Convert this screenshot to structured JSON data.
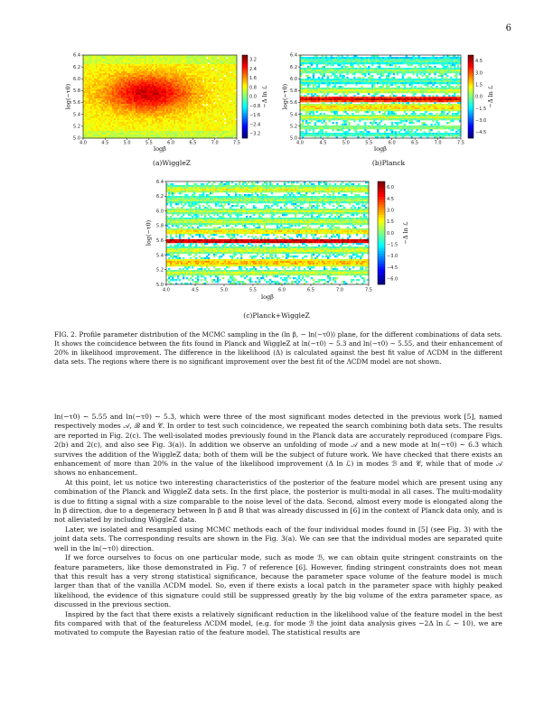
{
  "page_number": "6",
  "figures": {
    "wigglez": {
      "caption": "(a)WiggleZ",
      "xlabel": "logβ",
      "ylabel": "log(−τ0)",
      "colorbar_label": "−Δ ln ℒ",
      "xticks": [
        "4.0",
        "4.5",
        "5.0",
        "5.5",
        "6.0",
        "6.5",
        "7.0",
        "7.5"
      ],
      "yticks": [
        "5.0",
        "5.2",
        "5.4",
        "5.6",
        "5.8",
        "6.0",
        "6.2",
        "6.4"
      ],
      "cbar_ticks": [
        "3.2",
        "2.4",
        "1.6",
        "0.8",
        "0.0",
        "−0.8",
        "−1.6",
        "−2.4",
        "−3.2"
      ]
    },
    "planck": {
      "caption": "(b)Planck",
      "xlabel": "logβ",
      "ylabel": "log(−τ0)",
      "colorbar_label": "−Δ ln ℒ",
      "xticks": [
        "4.0",
        "4.5",
        "5.0",
        "5.5",
        "6.0",
        "6.5",
        "7.0",
        "7.5"
      ],
      "yticks": [
        "5.0",
        "5.2",
        "5.4",
        "5.6",
        "5.8",
        "6.0",
        "6.2",
        "6.4"
      ],
      "cbar_ticks": [
        "4.5",
        "3.0",
        "1.5",
        "0.0",
        "−1.5",
        "−3.0",
        "−4.5"
      ]
    },
    "combined": {
      "caption": "(c)Planck+WiggleZ",
      "xlabel": "logβ",
      "ylabel": "log(−τ0)",
      "colorbar_label": "−Δ ln ℒ",
      "xticks": [
        "4.0",
        "4.5",
        "5.0",
        "5.5",
        "6.0",
        "6.5",
        "7.0",
        "7.5"
      ],
      "yticks": [
        "5.0",
        "5.2",
        "5.4",
        "5.6",
        "5.8",
        "6.0",
        "6.2",
        "6.4"
      ],
      "cbar_ticks": [
        "6.0",
        "4.5",
        "3.0",
        "1.5",
        "0.0",
        "−1.5",
        "−3.0",
        "−4.5",
        "−6.0"
      ]
    }
  },
  "figure_caption": "FIG. 2. Profile parameter distribution of the MCMC sampling in the (ln β, − ln(−τ0)) plane, for the different combinations of data sets. It shows the coincidence between the fits found in Planck and WiggleZ at ln(−τ0) ∼ 5.3 and ln(−τ0) ∼ 5.55, and their enhancement of 20% in likelihood improvement. The difference in the likelihood (Δ) is calculated against the best fit value of ΛCDM in the different data sets. The regions where there is no significant improvement over the best fit of the ΛCDM model are not shown.",
  "paragraphs": [
    "ln(−τ0) ∼ 5.55 and ln(−τ0) ∼ 5.3, which were three of the most significant modes detected in the previous work [5], named respectively modes 𝒜, ℬ and 𝒞. In order to test such coincidence, we repeated the search combining both data sets. The results are reported in Fig. 2(c). The well-isolated modes previously found in the Planck data are accurately reproduced (compare Figs. 2(b) and 2(c), and also see Fig. 3(a)). In addition we observe an unfolding of mode 𝒜 and a new mode at ln(−τ0) ∼ 6.3 which survives the addition of the WiggleZ data; both of them will be the subject of future work. We have checked that there exists an enhancement of more than 20% in the value of the likelihood improvement (Δ ln ℒ) in modes ℬ and 𝒞, while that of mode 𝒜 shows no enhancement.",
    "At this point, let us notice two interesting characteristics of the posterior of the feature model which are present using any combination of the Planck and WiggleZ data sets. In the first place, the posterior is multi-modal in all cases. The multi-modality is due to fitting a signal with a size comparable to the noise level of the data. Second, almost every mode is elongated along the ln β direction, due to a degeneracy between ln β and B that was already discussed in [6] in the context of Planck data only, and is not alleviated by including WiggleZ data.",
    "Later, we isolated and resampled using MCMC methods each of the four individual modes found in [5] (see Fig. 3) with the joint data sets. The corresponding results are shown in the Fig. 3(a). We can see that the individual modes are separated quite well in the ln(−τ0) direction.",
    "If we force ourselves to focus on one particular mode, such as mode ℬ, we can obtain quite stringent constraints on the feature parameters, like those demonstrated in Fig. 7 of reference [6]. However, finding stringent constraints does not mean that this result has a very strong statistical significance, because the parameter space volume of the feature model is much larger than that of the vanilla ΛCDM model. So, even if there exists a local patch in the parameter space with highly peaked likelihood, the evidence of this signature could still be suppressed greatly by the big volume of the extra parameter space, as discussed in the previous section.",
    "Inspired by the fact that there exists a relatively significant reduction in the likelihood value of the feature model in the best fits compared with that of the featureless ΛCDM model, (e.g. for mode ℬ the joint data analysis gives −2Δ ln ℒ ∼ 10), we are motivated to compute the Bayesian ratio of the feature model. The statistical results are"
  ]
}
